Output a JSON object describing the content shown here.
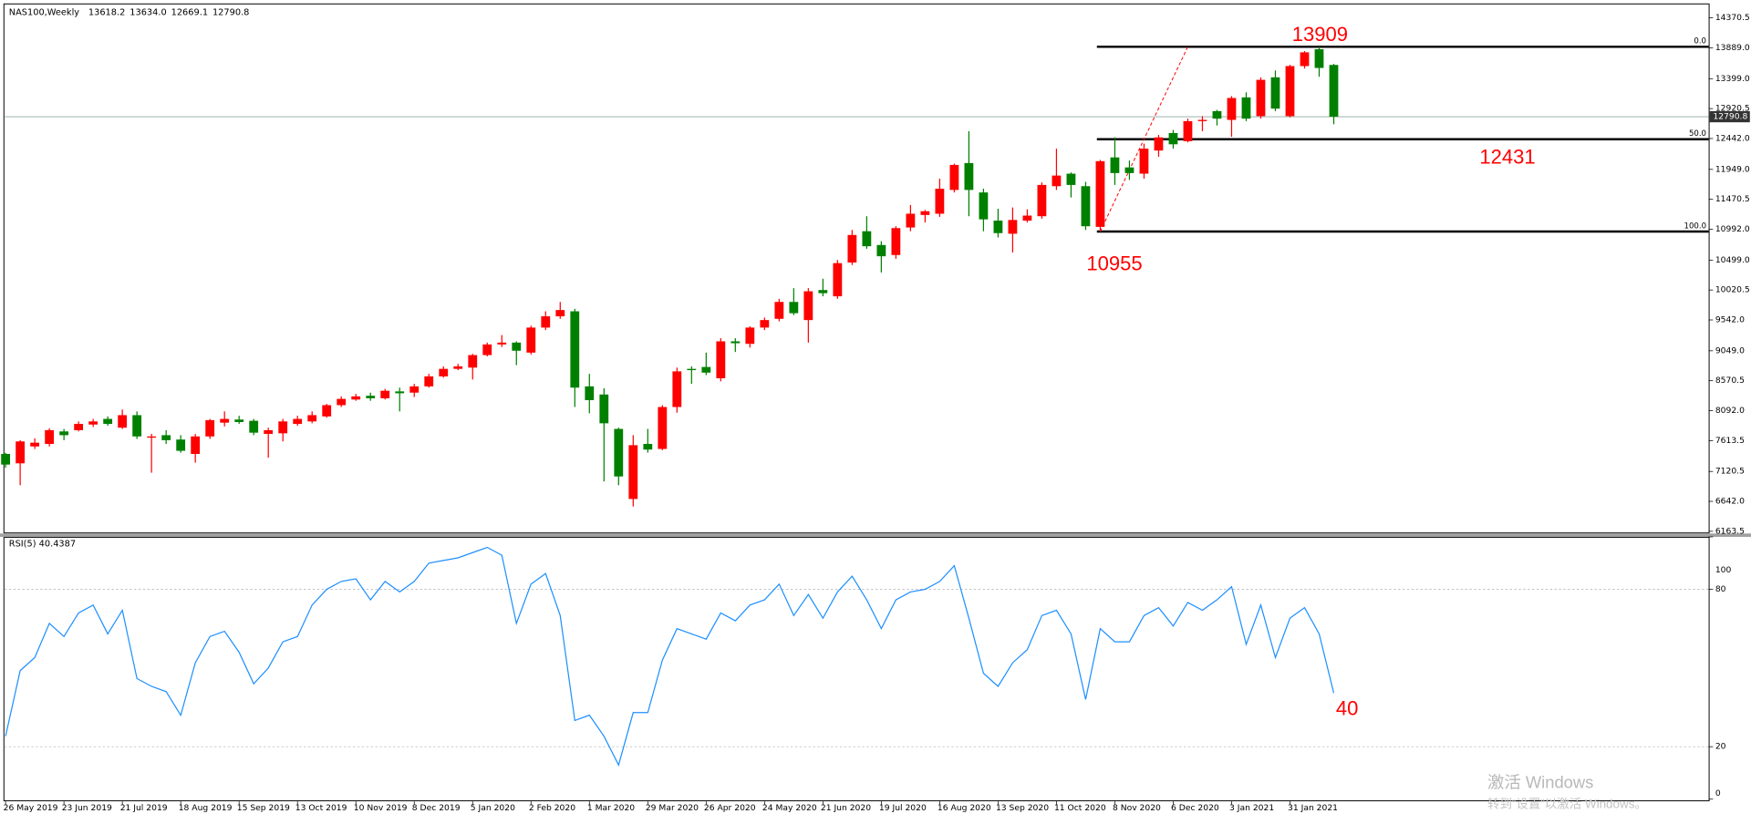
{
  "chart_data": [
    {
      "type": "candlestick",
      "symbol": "NAS100,Weekly",
      "info_values": [
        "13618.2",
        "13634.0",
        "12669.1",
        "12790.8"
      ],
      "categories": [
        "26 May 2019",
        null,
        null,
        null,
        "23 Jun 2019",
        null,
        null,
        null,
        "21 Jul 2019",
        null,
        null,
        null,
        "18 Aug 2019",
        null,
        null,
        null,
        "15 Sep 2019",
        null,
        null,
        null,
        "13 Oct 2019",
        null,
        null,
        null,
        "10 Nov 2019",
        null,
        null,
        null,
        "8 Dec 2019",
        null,
        null,
        null,
        "5 Jan 2020",
        null,
        null,
        null,
        "2 Feb 2020",
        null,
        null,
        null,
        "1 Mar 2020",
        null,
        null,
        null,
        "29 Mar 2020",
        null,
        null,
        null,
        "26 Apr 2020",
        null,
        null,
        null,
        "24 May 2020",
        null,
        null,
        null,
        "21 Jun 2020",
        null,
        null,
        null,
        "19 Jul 2020",
        null,
        null,
        null,
        "16 Aug 2020",
        null,
        null,
        null,
        "13 Sep 2020",
        null,
        null,
        null,
        "11 Oct 2020",
        null,
        null,
        null,
        "8 Nov 2020",
        null,
        null,
        null,
        "6 Dec 2020",
        null,
        null,
        null,
        "3 Jan 2021",
        null,
        null,
        null,
        "31 Jan 2021",
        null,
        null,
        null
      ],
      "open": [
        7400,
        7250,
        7520,
        7560,
        7760,
        7780,
        7870,
        7960,
        7820,
        8020,
        7660,
        7700,
        7630,
        7400,
        7680,
        7900,
        7950,
        7930,
        7720,
        7730,
        7880,
        7920,
        8000,
        8180,
        8270,
        8330,
        8290,
        8400,
        8380,
        8480,
        8640,
        8760,
        8780,
        8980,
        9150,
        9180,
        9020,
        9420,
        9600,
        9680,
        8480,
        8350,
        7800,
        6680,
        7560,
        7480,
        8150,
        8760,
        8790,
        8610,
        9200,
        9160,
        9420,
        9560,
        9830,
        9540,
        10020,
        9920,
        10460,
        10960,
        10740,
        10580,
        11020,
        11220,
        11240,
        11620,
        12050,
        11580,
        11130,
        10920,
        11130,
        11200,
        11680,
        11880,
        11680,
        11030,
        12140,
        11980,
        11880,
        12250,
        12530,
        12400,
        12720,
        12880,
        12740,
        13100,
        12800,
        13420,
        12800,
        13600,
        13870,
        13618.2
      ],
      "high": [
        7420,
        7620,
        7650,
        7810,
        7800,
        7920,
        7960,
        8000,
        8110,
        8080,
        7720,
        7780,
        7700,
        7720,
        7960,
        8080,
        8010,
        7960,
        7820,
        7960,
        8010,
        8080,
        8200,
        8320,
        8360,
        8380,
        8440,
        8460,
        8520,
        8680,
        8800,
        8840,
        9000,
        9180,
        9300,
        9200,
        9450,
        9680,
        9830,
        9720,
        8680,
        8450,
        7820,
        7700,
        7800,
        8180,
        8780,
        8800,
        9020,
        9250,
        9250,
        9440,
        9580,
        9880,
        10050,
        10050,
        10200,
        10500,
        10980,
        11200,
        10800,
        11040,
        11380,
        11300,
        11800,
        12040,
        12560,
        11640,
        11320,
        11340,
        11310,
        11740,
        12280,
        11900,
        11750,
        12100,
        12460,
        12090,
        12360,
        12500,
        12580,
        12760,
        12800,
        12900,
        13120,
        13180,
        13420,
        13530,
        13620,
        13840,
        13909,
        13634
      ],
      "low": [
        7180,
        6900,
        7480,
        7520,
        7620,
        7760,
        7830,
        7850,
        7800,
        7640,
        7100,
        7560,
        7420,
        7260,
        7640,
        7840,
        7880,
        7700,
        7340,
        7600,
        7850,
        7890,
        7980,
        8150,
        8250,
        8250,
        8270,
        8080,
        8310,
        8460,
        8620,
        8740,
        8590,
        8960,
        9110,
        8820,
        8990,
        9380,
        9560,
        8150,
        8050,
        6960,
        6900,
        6560,
        7420,
        7460,
        8060,
        8520,
        8660,
        8560,
        9030,
        9100,
        9380,
        9520,
        9620,
        9180,
        9920,
        9880,
        10420,
        10680,
        10300,
        10520,
        10960,
        11100,
        11190,
        11580,
        11200,
        10960,
        10860,
        10620,
        11100,
        11160,
        11620,
        11500,
        10980,
        10955,
        11700,
        11780,
        11800,
        12150,
        12280,
        12380,
        12560,
        12650,
        12470,
        12720,
        12760,
        12880,
        12780,
        13560,
        13430,
        12669.1
      ],
      "close": [
        7230,
        7600,
        7580,
        7780,
        7700,
        7880,
        7920,
        7880,
        8020,
        7680,
        7680,
        7620,
        7450,
        7680,
        7940,
        7960,
        7910,
        7740,
        7780,
        7920,
        7960,
        8020,
        8180,
        8280,
        8320,
        8290,
        8410,
        8370,
        8480,
        8640,
        8760,
        8800,
        8980,
        9150,
        9180,
        9050,
        9420,
        9600,
        9700,
        8460,
        8260,
        7890,
        7040,
        7540,
        7470,
        8150,
        8720,
        8740,
        8700,
        9200,
        9170,
        9420,
        9540,
        9830,
        9650,
        10000,
        9970,
        10450,
        10900,
        10720,
        10560,
        11010,
        11240,
        11280,
        11640,
        12020,
        11620,
        11150,
        10930,
        11140,
        11210,
        11700,
        11850,
        11700,
        11040,
        12080,
        11890,
        11890,
        12280,
        12460,
        12350,
        12720,
        12740,
        12760,
        13090,
        12760,
        13380,
        12920,
        13600,
        13820,
        13570,
        12790.8
      ],
      "up_color": "#ff0000",
      "down_color": "#008000",
      "last_price": 12790.8,
      "ylim": [
        6128,
        14585
      ],
      "yticks": [
        14370.5,
        {
          "value": 13889,
          "label": "13889.0"
        },
        {
          "value": 13399,
          "label": "13399.0"
        },
        12920.5,
        {
          "value": 12442,
          "label": "12442.0"
        },
        {
          "value": 11949,
          "label": "11949.0"
        },
        11470.5,
        {
          "value": 10992,
          "label": "10992.0"
        },
        {
          "value": 10499,
          "label": "10499.0"
        },
        10020.5,
        {
          "value": 9542,
          "label": "9542.0"
        },
        {
          "value": 9049,
          "label": "9049.0"
        },
        8570.5,
        {
          "value": 8092,
          "label": "8092.0"
        },
        7613.5,
        7120.5,
        {
          "value": 6642,
          "label": "6642.0"
        },
        6163.5
      ],
      "fibo": {
        "prices": [
          13909,
          12431,
          10955
        ],
        "labels": [
          "0.0",
          "50.0",
          "100.0"
        ],
        "color": "#000000"
      },
      "annotation_color": "#ff0000"
    },
    {
      "type": "line",
      "title": "RSI(5) 40.4387",
      "color": "#1e90ff",
      "values": [
        24,
        49,
        54,
        67,
        62,
        71,
        74,
        63,
        72,
        46,
        43,
        41,
        32,
        52,
        62,
        64,
        56,
        44,
        50,
        60,
        62,
        74,
        80,
        83,
        84,
        76,
        83,
        79,
        83,
        90,
        91,
        92,
        94,
        96,
        93,
        67,
        82,
        86,
        70,
        30,
        32,
        24,
        13,
        33,
        33,
        53,
        65,
        63,
        61,
        71,
        68,
        74,
        76,
        82,
        70,
        78,
        69,
        79,
        85,
        76,
        65,
        76,
        79,
        80,
        83,
        89,
        69,
        48,
        43,
        52,
        57,
        70,
        72,
        63,
        38,
        65,
        60,
        60,
        70,
        73,
        66,
        75,
        72,
        76,
        81,
        59,
        74,
        54,
        69,
        73,
        63,
        40.4387
      ],
      "ylim": [
        0,
        100
      ],
      "yticks": [
        0,
        20,
        80,
        100
      ],
      "levels": [
        20,
        80
      ],
      "annotation": 40
    }
  ],
  "watermark": [
    "激活 Windows",
    "转到“设置”以激活 Windows。"
  ]
}
